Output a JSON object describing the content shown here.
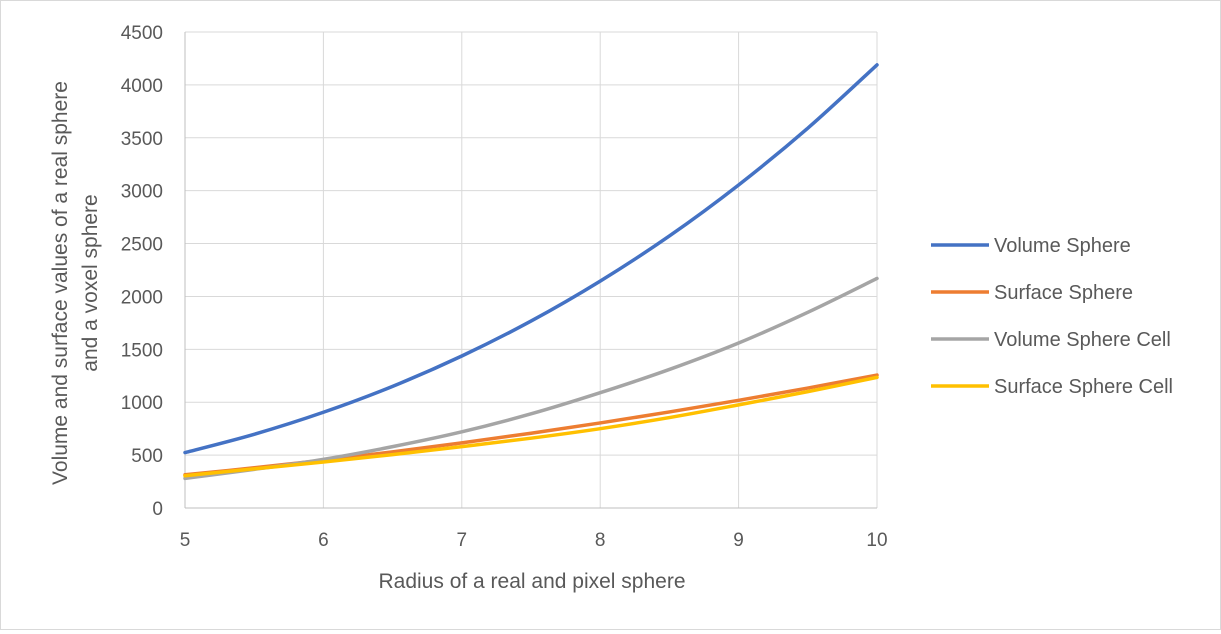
{
  "chart_data": {
    "type": "line",
    "title": "",
    "xlabel": "Radius of a real and pixel sphere",
    "ylabel_lines": [
      "Volume and surface values of a real sphere",
      "and a voxel sphere"
    ],
    "x": [
      5,
      5.5,
      6,
      6.5,
      7,
      7.5,
      8,
      8.5,
      9,
      9.5,
      10
    ],
    "xlim": [
      5,
      10
    ],
    "ylim": [
      0,
      4500
    ],
    "x_ticks": [
      "5",
      "6",
      "7",
      "8",
      "9",
      "10"
    ],
    "y_ticks": [
      "0",
      "500",
      "1000",
      "1500",
      "2000",
      "2500",
      "3000",
      "3500",
      "4000",
      "4500"
    ],
    "grid": true,
    "legend_position": "right",
    "series": [
      {
        "name": "Volume Sphere",
        "color": "#4472c4",
        "values": [
          524,
          697,
          905,
          1150,
          1437,
          1767,
          2145,
          2572,
          3054,
          3591,
          4189
        ]
      },
      {
        "name": "Surface Sphere",
        "color": "#ed7d31",
        "values": [
          314,
          380,
          452,
          531,
          616,
          707,
          804,
          908,
          1018,
          1134,
          1257
        ]
      },
      {
        "name": "Volume Sphere Cell",
        "color": "#a5a5a5",
        "values": [
          280,
          365,
          460,
          580,
          720,
          890,
          1090,
          1310,
          1560,
          1850,
          2170
        ]
      },
      {
        "name": "Surface Sphere Cell",
        "color": "#ffc000",
        "values": [
          305,
          370,
          435,
          505,
          580,
          660,
          750,
          855,
          975,
          1100,
          1235
        ]
      }
    ]
  }
}
